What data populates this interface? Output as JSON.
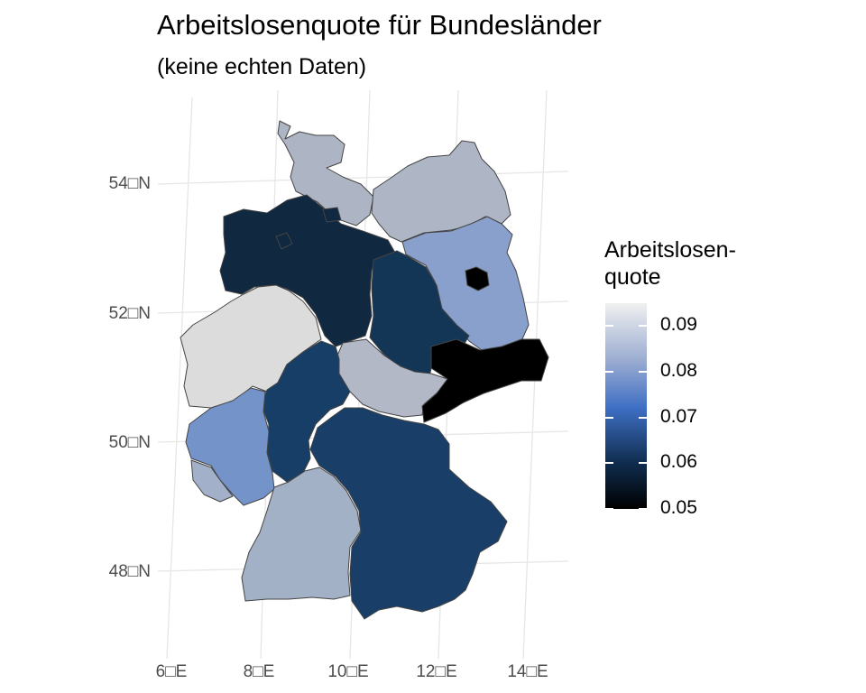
{
  "chart_data": {
    "type": "choropleth",
    "title": "Arbeitslosenquote für Bundesländer",
    "subtitle": "(keine echten Daten)",
    "x_ticks": [
      "6□E",
      "8□E",
      "10□E",
      "12□E",
      "14□E"
    ],
    "y_ticks": [
      "54□N",
      "52□N",
      "50□N",
      "48□N"
    ],
    "legend": {
      "title_lines": [
        "Arbeitslosen-",
        "quote"
      ],
      "labels": [
        "0.09",
        "0.08",
        "0.07",
        "0.06",
        "0.05"
      ],
      "range": [
        0.05,
        0.095
      ]
    },
    "regions": [
      {
        "id": "schleswig-holstein",
        "value": 0.082,
        "color": "#adb4c4"
      },
      {
        "id": "mecklenburg-vorpommern",
        "value": 0.082,
        "color": "#aeb6c6"
      },
      {
        "id": "niedersachsen",
        "value": 0.057,
        "color": "#102840"
      },
      {
        "id": "bremen",
        "value": 0.057,
        "color": "#102840"
      },
      {
        "id": "hamburg",
        "value": 0.057,
        "color": "#102840"
      },
      {
        "id": "brandenburg",
        "value": 0.076,
        "color": "#8aa0cc"
      },
      {
        "id": "berlin",
        "value": 0.05,
        "color": "#000000"
      },
      {
        "id": "sachsen-anhalt",
        "value": 0.062,
        "color": "#143656"
      },
      {
        "id": "nordrhein-westfalen",
        "value": 0.093,
        "color": "#dcdcdc"
      },
      {
        "id": "thueringen",
        "value": 0.084,
        "color": "#b2b8c6"
      },
      {
        "id": "sachsen",
        "value": 0.05,
        "color": "#000000"
      },
      {
        "id": "hessen",
        "value": 0.064,
        "color": "#173e66"
      },
      {
        "id": "rheinland-pfalz",
        "value": 0.074,
        "color": "#7393c9"
      },
      {
        "id": "saarland",
        "value": 0.081,
        "color": "#a3b0c9"
      },
      {
        "id": "baden-wuerttemberg",
        "value": 0.081,
        "color": "#a3b1c6"
      },
      {
        "id": "bayern",
        "value": 0.064,
        "color": "#193f68"
      }
    ]
  }
}
